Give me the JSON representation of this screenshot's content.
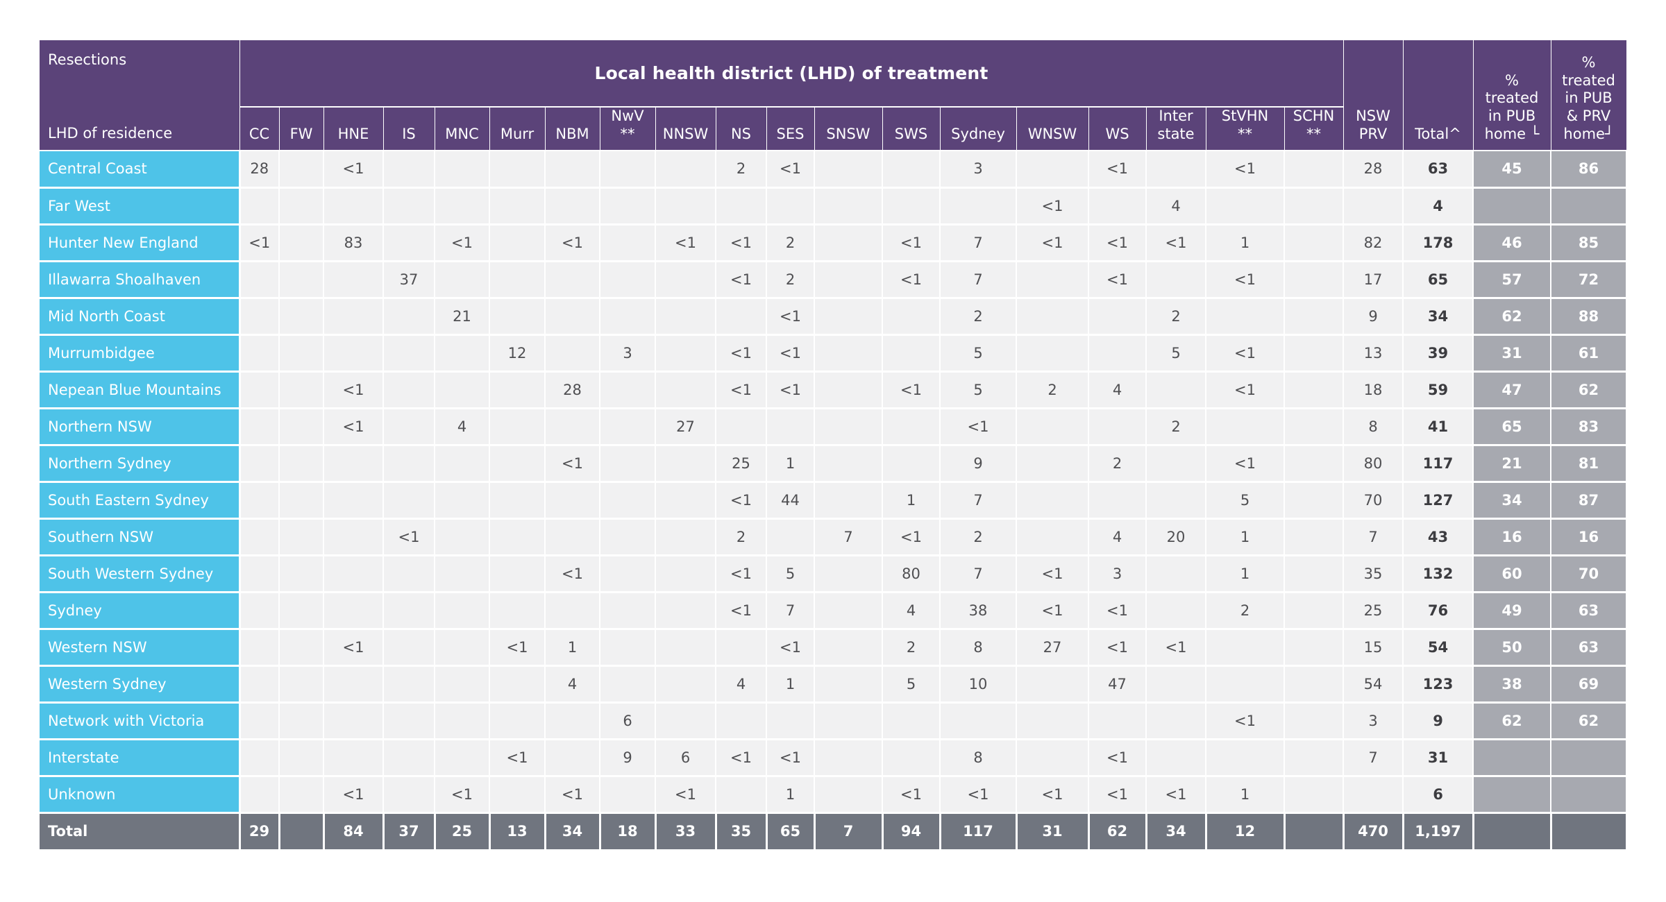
{
  "table": {
    "corner": {
      "top": "Resections",
      "bottom": "LHD of residence"
    },
    "group_header": "Local health district (LHD) of treatment",
    "colors": {
      "header_purple": "#5b4379",
      "row_label_teal": "#4ec3e8",
      "total_row_gray": "#70757f",
      "pct_column_gray": "#a7a9b0",
      "data_cell_bg": "#f1f1f2"
    },
    "columns": [
      {
        "key": "cc",
        "label": "CC"
      },
      {
        "key": "fw",
        "label": "FW"
      },
      {
        "key": "hne",
        "label": "HNE"
      },
      {
        "key": "is",
        "label": "IS"
      },
      {
        "key": "mnc",
        "label": "MNC"
      },
      {
        "key": "murr",
        "label": "Murr"
      },
      {
        "key": "nbm",
        "label": "NBM"
      },
      {
        "key": "nwv",
        "label": "NwV\n**"
      },
      {
        "key": "nnsw",
        "label": "NNSW"
      },
      {
        "key": "ns",
        "label": "NS"
      },
      {
        "key": "ses",
        "label": "SES"
      },
      {
        "key": "snsw",
        "label": "SNSW"
      },
      {
        "key": "sws",
        "label": "SWS"
      },
      {
        "key": "sydney",
        "label": "Sydney"
      },
      {
        "key": "wnsw",
        "label": "WNSW"
      },
      {
        "key": "ws",
        "label": "WS"
      },
      {
        "key": "interstate",
        "label": "Inter\nstate"
      },
      {
        "key": "stvhn",
        "label": "StVHN\n**"
      },
      {
        "key": "schn",
        "label": "SCHN\n**"
      },
      {
        "key": "nsw_prv",
        "label": "NSW\nPRV"
      },
      {
        "key": "total",
        "label": "Total^"
      },
      {
        "key": "pct_pub",
        "label": "%\ntreated\nin PUB\nhome └"
      },
      {
        "key": "pct_pub_prv",
        "label": "%\ntreated\nin PUB\n& PRV\nhome┘"
      }
    ],
    "rows": [
      {
        "label": "Central Coast",
        "values": [
          "28",
          "",
          "<1",
          "",
          "",
          "",
          "",
          "",
          "",
          "2",
          "<1",
          "",
          "",
          "3",
          "",
          "<1",
          "",
          "<1",
          "",
          "28",
          "63",
          "45",
          "86"
        ]
      },
      {
        "label": "Far West",
        "values": [
          "",
          "",
          "",
          "",
          "",
          "",
          "",
          "",
          "",
          "",
          "",
          "",
          "",
          "",
          "<1",
          "",
          "4",
          "",
          "",
          "",
          "4",
          "",
          ""
        ]
      },
      {
        "label": "Hunter New England",
        "values": [
          "<1",
          "",
          "83",
          "",
          "<1",
          "",
          "<1",
          "",
          "<1",
          "<1",
          "2",
          "",
          "<1",
          "7",
          "<1",
          "<1",
          "<1",
          "1",
          "",
          "82",
          "178",
          "46",
          "85"
        ]
      },
      {
        "label": "Illawarra Shoalhaven",
        "values": [
          "",
          "",
          "",
          "37",
          "",
          "",
          "",
          "",
          "",
          "<1",
          "2",
          "",
          "<1",
          "7",
          "",
          "<1",
          "",
          "<1",
          "",
          "17",
          "65",
          "57",
          "72"
        ]
      },
      {
        "label": "Mid North Coast",
        "values": [
          "",
          "",
          "",
          "",
          "21",
          "",
          "",
          "",
          "",
          "",
          "<1",
          "",
          "",
          "2",
          "",
          "",
          "2",
          "",
          "",
          "9",
          "34",
          "62",
          "88"
        ]
      },
      {
        "label": "Murrumbidgee",
        "values": [
          "",
          "",
          "",
          "",
          "",
          "12",
          "",
          "3",
          "",
          "<1",
          "<1",
          "",
          "",
          "5",
          "",
          "",
          "5",
          "<1",
          "",
          "13",
          "39",
          "31",
          "61"
        ]
      },
      {
        "label": "Nepean Blue Mountains",
        "values": [
          "",
          "",
          "<1",
          "",
          "",
          "",
          "28",
          "",
          "",
          "<1",
          "<1",
          "",
          "<1",
          "5",
          "2",
          "4",
          "",
          "<1",
          "",
          "18",
          "59",
          "47",
          "62"
        ]
      },
      {
        "label": "Northern NSW",
        "values": [
          "",
          "",
          "<1",
          "",
          "4",
          "",
          "",
          "",
          "27",
          "",
          "",
          "",
          "",
          "<1",
          "",
          "",
          "2",
          "",
          "",
          "8",
          "41",
          "65",
          "83"
        ]
      },
      {
        "label": "Northern Sydney",
        "values": [
          "",
          "",
          "",
          "",
          "",
          "",
          "<1",
          "",
          "",
          "25",
          "1",
          "",
          "",
          "9",
          "",
          "2",
          "",
          "<1",
          "",
          "80",
          "117",
          "21",
          "81"
        ]
      },
      {
        "label": "South Eastern Sydney",
        "values": [
          "",
          "",
          "",
          "",
          "",
          "",
          "",
          "",
          "",
          "<1",
          "44",
          "",
          "1",
          "7",
          "",
          "",
          "",
          "5",
          "",
          "70",
          "127",
          "34",
          "87"
        ]
      },
      {
        "label": "Southern NSW",
        "values": [
          "",
          "",
          "",
          "<1",
          "",
          "",
          "",
          "",
          "",
          "2",
          "",
          "7",
          "<1",
          "2",
          "",
          "4",
          "20",
          "1",
          "",
          "7",
          "43",
          "16",
          "16"
        ]
      },
      {
        "label": "South Western Sydney",
        "values": [
          "",
          "",
          "",
          "",
          "",
          "",
          "<1",
          "",
          "",
          "<1",
          "5",
          "",
          "80",
          "7",
          "<1",
          "3",
          "",
          "1",
          "",
          "35",
          "132",
          "60",
          "70"
        ]
      },
      {
        "label": "Sydney",
        "values": [
          "",
          "",
          "",
          "",
          "",
          "",
          "",
          "",
          "",
          "<1",
          "7",
          "",
          "4",
          "38",
          "<1",
          "<1",
          "",
          "2",
          "",
          "25",
          "76",
          "49",
          "63"
        ]
      },
      {
        "label": "Western NSW",
        "values": [
          "",
          "",
          "<1",
          "",
          "",
          "<1",
          "1",
          "",
          "",
          "",
          "<1",
          "",
          "2",
          "8",
          "27",
          "<1",
          "<1",
          "",
          "",
          "15",
          "54",
          "50",
          "63"
        ]
      },
      {
        "label": "Western Sydney",
        "values": [
          "",
          "",
          "",
          "",
          "",
          "",
          "4",
          "",
          "",
          "4",
          "1",
          "",
          "5",
          "10",
          "",
          "47",
          "",
          "",
          "",
          "54",
          "123",
          "38",
          "69"
        ]
      },
      {
        "label": "Network with Victoria",
        "values": [
          "",
          "",
          "",
          "",
          "",
          "",
          "",
          "6",
          "",
          "",
          "",
          "",
          "",
          "",
          "",
          "",
          "",
          "<1",
          "",
          "3",
          "9",
          "62",
          "62"
        ]
      },
      {
        "label": "Interstate",
        "values": [
          "",
          "",
          "",
          "",
          "",
          "<1",
          "",
          "9",
          "6",
          "<1",
          "<1",
          "",
          "",
          "8",
          "",
          "<1",
          "",
          "",
          "",
          "7",
          "31",
          "",
          ""
        ]
      },
      {
        "label": "Unknown",
        "values": [
          "",
          "",
          "<1",
          "",
          "<1",
          "",
          "<1",
          "",
          "<1",
          "",
          "1",
          "",
          "<1",
          "<1",
          "<1",
          "<1",
          "<1",
          "1",
          "",
          "",
          "6",
          "",
          ""
        ]
      }
    ],
    "total_row": {
      "label": "Total",
      "values": [
        "29",
        "",
        "84",
        "37",
        "25",
        "13",
        "34",
        "18",
        "33",
        "35",
        "65",
        "7",
        "94",
        "117",
        "31",
        "62",
        "34",
        "12",
        "",
        "470",
        "1,197",
        "",
        ""
      ]
    }
  }
}
